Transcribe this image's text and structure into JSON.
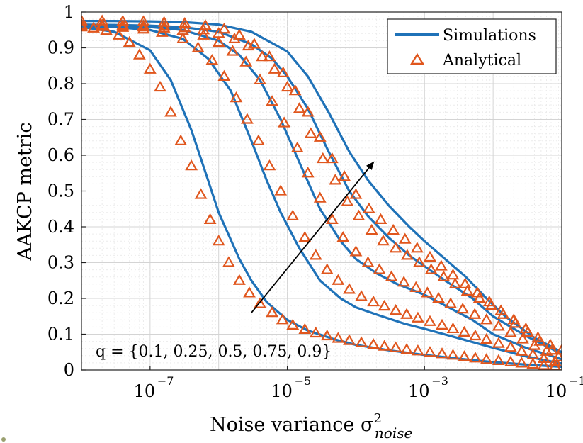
{
  "chart_data": {
    "type": "line",
    "xscale": "log",
    "xlim": [
      1e-08,
      0.1
    ],
    "ylim": [
      0,
      1
    ],
    "grid": true,
    "xlabel": "Noise variance σ²noise",
    "ylabel": "AAKCP metric",
    "x_ticks": [
      {
        "value": 1e-07,
        "label": "10"
      },
      {
        "value": 1e-05,
        "label": "10"
      },
      {
        "value": 0.001,
        "label": "10"
      },
      {
        "value": 0.1,
        "label": "10"
      }
    ],
    "x_tick_exponents": [
      "−7",
      "−5",
      "−3",
      "−1"
    ],
    "y_ticks": [
      {
        "value": 0,
        "label": "0"
      },
      {
        "value": 0.1,
        "label": "0.1"
      },
      {
        "value": 0.2,
        "label": "0.2"
      },
      {
        "value": 0.3,
        "label": "0.3"
      },
      {
        "value": 0.4,
        "label": "0.4"
      },
      {
        "value": 0.5,
        "label": "0.5"
      },
      {
        "value": 0.6,
        "label": "0.6"
      },
      {
        "value": 0.7,
        "label": "0.7"
      },
      {
        "value": 0.8,
        "label": "0.8"
      },
      {
        "value": 0.9,
        "label": "0.9"
      },
      {
        "value": 1,
        "label": "1"
      }
    ],
    "legend": {
      "position": "top-right",
      "entries": [
        {
          "label": "Simulations",
          "marker": "line",
          "color": "#1f72b8"
        },
        {
          "label": "Analytical",
          "marker": "triangle",
          "color": "#e0561d"
        }
      ]
    },
    "annotation": "q = {0.1, 0.25, 0.5, 0.75, 0.9}",
    "arrow": {
      "from": [
        3e-06,
        0.16
      ],
      "to": [
        0.00018,
        0.58
      ]
    },
    "series": [
      {
        "x": [
          1e-08,
          3e-08,
          1e-07,
          2e-07,
          4e-07,
          7e-07,
          1e-06,
          2e-06,
          3e-06,
          5e-06,
          1e-05,
          2e-05,
          5e-05,
          0.0001,
          0.0003,
          0.001,
          0.003,
          0.01,
          0.03,
          0.1
        ],
        "sim": [
          0.958,
          0.945,
          0.893,
          0.81,
          0.67,
          0.53,
          0.44,
          0.31,
          0.25,
          0.19,
          0.14,
          0.11,
          0.085,
          0.07,
          0.055,
          0.042,
          0.032,
          0.022,
          0.015,
          0.009
        ],
        "analytical_x": [
          1e-08,
          1.5e-08,
          2.3e-08,
          3.5e-08,
          5e-08,
          7e-08,
          1e-07,
          1.4e-07,
          2e-07,
          2.8e-07,
          4e-07,
          5.5e-07,
          7.5e-07,
          1e-06,
          1.4e-06,
          2e-06,
          2.8e-06,
          4e-06,
          6e-06,
          8.5e-06,
          1.2e-05,
          1.8e-05,
          2.6e-05,
          3.8e-05,
          5.5e-05,
          8e-05,
          0.00012,
          0.00018,
          0.00026,
          0.00038,
          0.00055,
          0.0008,
          0.0012,
          0.0018,
          0.0026,
          0.0038,
          0.0055,
          0.008,
          0.012,
          0.018,
          0.026,
          0.038,
          0.055,
          0.08
        ],
        "analytical": [
          0.958,
          0.955,
          0.948,
          0.935,
          0.915,
          0.88,
          0.84,
          0.79,
          0.72,
          0.64,
          0.57,
          0.49,
          0.42,
          0.36,
          0.3,
          0.25,
          0.215,
          0.185,
          0.16,
          0.14,
          0.125,
          0.113,
          0.103,
          0.095,
          0.088,
          0.082,
          0.076,
          0.071,
          0.066,
          0.062,
          0.057,
          0.053,
          0.049,
          0.045,
          0.041,
          0.037,
          0.033,
          0.029,
          0.026,
          0.022,
          0.019,
          0.016,
          0.013,
          0.011
        ]
      },
      {
        "x": [
          1e-08,
          3e-08,
          1e-07,
          3e-07,
          7e-07,
          1.5e-06,
          3e-06,
          5e-06,
          8e-06,
          1.5e-05,
          3e-05,
          6e-05,
          0.0001,
          0.0002,
          0.0005,
          0.001,
          0.003,
          0.01,
          0.03,
          0.1
        ],
        "sim": [
          0.96,
          0.958,
          0.95,
          0.925,
          0.87,
          0.78,
          0.64,
          0.53,
          0.44,
          0.34,
          0.25,
          0.2,
          0.175,
          0.155,
          0.13,
          0.115,
          0.09,
          0.062,
          0.038,
          0.018
        ],
        "analytical_x": [
          1e-08,
          2e-08,
          4e-08,
          8e-08,
          1.5e-07,
          3e-07,
          5e-07,
          8e-07,
          1.2e-06,
          1.8e-06,
          2.6e-06,
          3.8e-06,
          5.5e-06,
          8e-06,
          1.2e-05,
          1.8e-05,
          2.6e-05,
          3.8e-05,
          5.5e-05,
          8e-05,
          0.00012,
          0.00018,
          0.00026,
          0.00038,
          0.00055,
          0.0008,
          0.0012,
          0.0018,
          0.0026,
          0.0038,
          0.0055,
          0.008,
          0.012,
          0.018,
          0.026,
          0.038,
          0.055,
          0.08
        ],
        "analytical": [
          0.96,
          0.959,
          0.957,
          0.952,
          0.943,
          0.925,
          0.9,
          0.865,
          0.82,
          0.76,
          0.7,
          0.64,
          0.57,
          0.5,
          0.43,
          0.37,
          0.32,
          0.28,
          0.25,
          0.225,
          0.205,
          0.19,
          0.178,
          0.166,
          0.155,
          0.145,
          0.135,
          0.125,
          0.115,
          0.105,
          0.095,
          0.085,
          0.074,
          0.063,
          0.052,
          0.042,
          0.032,
          0.024
        ]
      },
      {
        "x": [
          1e-08,
          3e-08,
          1e-07,
          3e-07,
          1e-06,
          2e-06,
          4e-06,
          8e-06,
          1.5e-05,
          3e-05,
          6e-05,
          0.0001,
          0.0002,
          0.0004,
          0.001,
          0.002,
          0.005,
          0.01,
          0.03,
          0.1
        ],
        "sim": [
          0.962,
          0.961,
          0.958,
          0.95,
          0.92,
          0.88,
          0.81,
          0.7,
          0.58,
          0.45,
          0.36,
          0.31,
          0.27,
          0.24,
          0.21,
          0.18,
          0.14,
          0.1,
          0.062,
          0.03
        ],
        "analytical_x": [
          1e-08,
          2e-08,
          4e-08,
          8e-08,
          1.6e-07,
          3e-07,
          6e-07,
          1e-06,
          1.6e-06,
          2.5e-06,
          4e-06,
          6e-06,
          9e-06,
          1.4e-05,
          2e-05,
          3e-05,
          4.5e-05,
          6.5e-05,
          0.0001,
          0.00015,
          0.00022,
          0.00033,
          0.0005,
          0.00075,
          0.0011,
          0.0016,
          0.0024,
          0.0036,
          0.0054,
          0.008,
          0.012,
          0.018,
          0.027,
          0.04,
          0.06,
          0.09
        ],
        "analytical": [
          0.962,
          0.961,
          0.96,
          0.958,
          0.955,
          0.948,
          0.935,
          0.915,
          0.89,
          0.86,
          0.81,
          0.75,
          0.69,
          0.62,
          0.55,
          0.48,
          0.42,
          0.37,
          0.33,
          0.3,
          0.28,
          0.26,
          0.245,
          0.23,
          0.215,
          0.2,
          0.185,
          0.17,
          0.155,
          0.14,
          0.122,
          0.104,
          0.086,
          0.068,
          0.052,
          0.036
        ]
      },
      {
        "x": [
          1e-08,
          3e-08,
          1e-07,
          3e-07,
          1e-06,
          3e-06,
          6e-06,
          1e-05,
          2e-05,
          4e-05,
          8e-05,
          0.00015,
          0.0003,
          0.0006,
          0.001,
          0.002,
          0.005,
          0.01,
          0.03,
          0.1
        ],
        "sim": [
          0.965,
          0.964,
          0.962,
          0.958,
          0.945,
          0.91,
          0.87,
          0.82,
          0.73,
          0.61,
          0.5,
          0.43,
          0.37,
          0.32,
          0.29,
          0.25,
          0.2,
          0.15,
          0.095,
          0.045
        ],
        "analytical_x": [
          1e-08,
          2e-08,
          4e-08,
          8e-08,
          1.6e-07,
          3.2e-07,
          6e-07,
          1e-06,
          1.7e-06,
          2.7e-06,
          4.3e-06,
          6.5e-06,
          1e-05,
          1.5e-05,
          2.2e-05,
          3.3e-05,
          5e-05,
          7.5e-05,
          0.00011,
          0.00017,
          0.00025,
          0.00038,
          0.00056,
          0.00084,
          0.00125,
          0.0019,
          0.0028,
          0.0042,
          0.0063,
          0.0094,
          0.014,
          0.021,
          0.032,
          0.048,
          0.072
        ],
        "analytical": [
          0.965,
          0.964,
          0.963,
          0.962,
          0.96,
          0.956,
          0.95,
          0.94,
          0.925,
          0.905,
          0.875,
          0.84,
          0.79,
          0.73,
          0.66,
          0.59,
          0.53,
          0.47,
          0.43,
          0.39,
          0.36,
          0.34,
          0.32,
          0.3,
          0.28,
          0.26,
          0.24,
          0.22,
          0.2,
          0.18,
          0.155,
          0.13,
          0.105,
          0.08,
          0.055
        ]
      },
      {
        "x": [
          1e-08,
          3e-08,
          1e-07,
          3e-07,
          1e-06,
          3e-06,
          1e-05,
          2e-05,
          4e-05,
          8e-05,
          0.00015,
          0.0003,
          0.0006,
          0.001,
          0.002,
          0.004,
          0.008,
          0.015,
          0.04,
          0.1
        ],
        "sim": [
          0.975,
          0.975,
          0.974,
          0.972,
          0.965,
          0.945,
          0.89,
          0.82,
          0.72,
          0.61,
          0.53,
          0.46,
          0.4,
          0.36,
          0.31,
          0.26,
          0.2,
          0.15,
          0.09,
          0.05
        ],
        "analytical_x": [
          1e-08,
          2e-08,
          4e-08,
          8e-08,
          1.6e-07,
          3.2e-07,
          6.4e-07,
          1.2e-06,
          2e-06,
          3.3e-06,
          5.5e-06,
          8.7e-06,
          1.3e-05,
          2e-05,
          3e-05,
          4.5e-05,
          6.8e-05,
          0.0001,
          0.000155,
          0.00023,
          0.00035,
          0.00052,
          0.00078,
          0.0012,
          0.00175,
          0.0026,
          0.0039,
          0.0059,
          0.0088,
          0.013,
          0.02,
          0.03,
          0.045,
          0.068,
          0.1
        ],
        "analytical": [
          0.975,
          0.975,
          0.974,
          0.973,
          0.971,
          0.968,
          0.962,
          0.952,
          0.935,
          0.91,
          0.875,
          0.83,
          0.78,
          0.72,
          0.65,
          0.59,
          0.54,
          0.49,
          0.45,
          0.42,
          0.39,
          0.365,
          0.34,
          0.315,
          0.29,
          0.265,
          0.24,
          0.215,
          0.19,
          0.165,
          0.14,
          0.115,
          0.09,
          0.07,
          0.055
        ]
      }
    ],
    "colors": {
      "line": "#1f72b8",
      "marker": "#e0561d",
      "grid": "#e4e4e4",
      "arrow": "#000000"
    }
  }
}
